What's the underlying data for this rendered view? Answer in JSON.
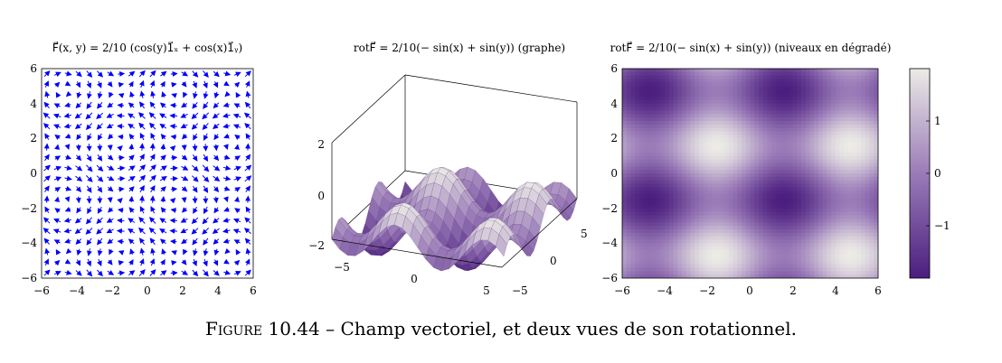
{
  "panels": {
    "quiver": {
      "title": "F⃗(x, y) = 2/10 (cos(y)1⃗ₓ + cos(x)1⃗ᵧ)",
      "x_ticks": [
        "−6",
        "−4",
        "−2",
        "0",
        "2",
        "4",
        "6"
      ],
      "y_ticks": [
        "−6",
        "−4",
        "−2",
        "0",
        "2",
        "4",
        "6"
      ],
      "arrow_color": "#0000ff"
    },
    "surface": {
      "title": "rotF⃗ = 2/10(− sin(x) + sin(y)) (graphe)",
      "z_ticks": [
        "−2",
        "0",
        "2"
      ],
      "x_ticks": [
        "−5",
        "0",
        "5"
      ],
      "y_ticks": [
        "−5",
        "0",
        "5"
      ]
    },
    "heatmap": {
      "title": "rotF⃗ = 2/10(− sin(x) + sin(y)) (niveaux en dégradé)",
      "x_ticks": [
        "−6",
        "−4",
        "−2",
        "0",
        "2",
        "4",
        "6"
      ],
      "y_ticks": [
        "−6",
        "−4",
        "−2",
        "0",
        "2",
        "4",
        "6"
      ],
      "colorbar_ticks": [
        "1",
        "0",
        "−1"
      ],
      "colormap": {
        "low": "#4b1e7e",
        "mid": "#9a7bb8",
        "high": "#ecebe6"
      }
    }
  },
  "caption": {
    "label": "Figure 10.44",
    "separator": " – ",
    "text": "Champ vectoriel, et deux vues de son rotationnel."
  },
  "chart_data": [
    {
      "type": "quiver",
      "title": "F⃗(x, y) = 2/10 (cos(y)1⃗ₓ + cos(x)1⃗ᵧ)",
      "field": {
        "u": "cos(y)",
        "v": "cos(x)",
        "scale": 0.2
      },
      "xlim": [
        -6,
        6
      ],
      "ylim": [
        -6,
        6
      ],
      "x_ticks": [
        -6,
        -4,
        -2,
        0,
        2,
        4,
        6
      ],
      "y_ticks": [
        -6,
        -4,
        -2,
        0,
        2,
        4,
        6
      ]
    },
    {
      "type": "surface",
      "title": "rotF⃗ = 2/10(− sin(x) + sin(y)) (graphe)",
      "function": "-sin(x) + sin(y)",
      "xlim": [
        -6,
        6
      ],
      "ylim": [
        -6,
        6
      ],
      "zlim": [
        -2.5,
        2.5
      ],
      "x_ticks": [
        -5,
        0,
        5
      ],
      "y_ticks": [
        -5,
        0,
        5
      ],
      "z_ticks": [
        -2,
        0,
        2
      ]
    },
    {
      "type": "heatmap",
      "title": "rotF⃗ = 2/10(− sin(x) + sin(y)) (niveaux en dégradé)",
      "function": "-sin(x) + sin(y)",
      "xlim": [
        -6,
        6
      ],
      "ylim": [
        -6,
        6
      ],
      "color_range": [
        -2,
        2
      ],
      "colorbar_ticks": [
        1,
        0,
        -1
      ]
    }
  ]
}
